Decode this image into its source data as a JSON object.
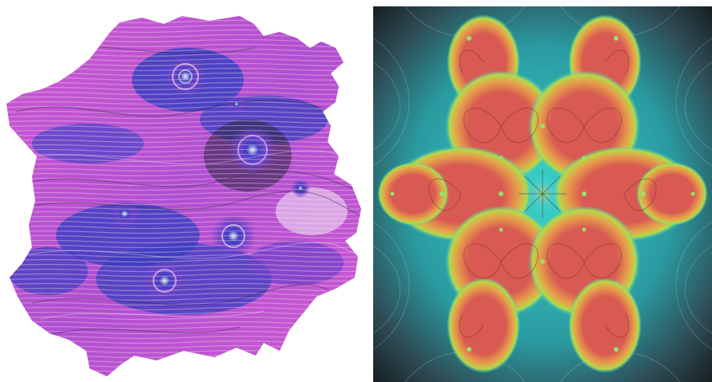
{
  "images": {
    "left": {
      "subject": "flow-field-blob",
      "colors": {
        "magenta": "#cf5ad2",
        "violet": "#6d3fc7",
        "blue": "#3b3fbf",
        "white": "#f2ebf5",
        "dark": "#2a2540",
        "background": "#ffffff"
      }
    },
    "right": {
      "subject": "field-line-heatmap",
      "colors": {
        "hot": "#d85a52",
        "warm": "#e6a04a",
        "mid": "#b6d84a",
        "cool": "#3ad2c8",
        "cold": "#2e4c55",
        "edge": "#151a1c",
        "singularity": "#9ae06a"
      }
    }
  }
}
